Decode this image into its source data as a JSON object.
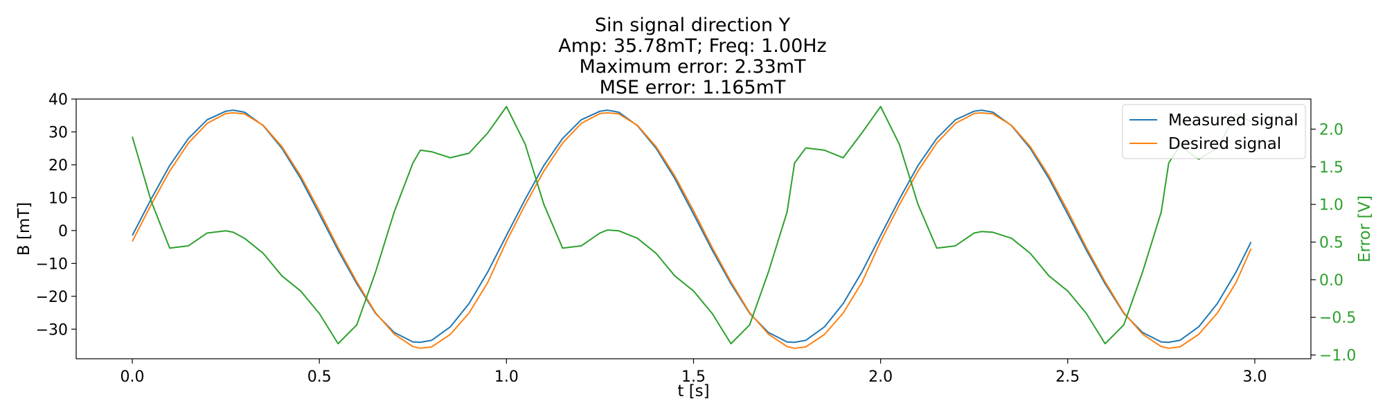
{
  "chart_data": {
    "type": "line",
    "title_lines": [
      "Sin signal direction Y",
      "Amp: 35.78mT; Freq: 1.00Hz",
      "Maximum error: 2.33mT",
      "MSE error: 1.165mT"
    ],
    "xlabel": "t [s]",
    "ylabel": "B [mT]",
    "y2label": "Error [V]",
    "xlim": [
      -0.15,
      3.15
    ],
    "ylim": [
      -39,
      40
    ],
    "y2lim": [
      -1.05,
      2.4
    ],
    "xticks": [
      0.0,
      0.5,
      1.0,
      1.5,
      2.0,
      2.5,
      3.0
    ],
    "xtick_labels": [
      "0.0",
      "0.5",
      "1.0",
      "1.5",
      "2.0",
      "2.5",
      "3.0"
    ],
    "yticks": [
      40,
      30,
      20,
      10,
      0,
      -10,
      -20,
      -30
    ],
    "ytick_labels": [
      "40",
      "30",
      "20",
      "10",
      "0",
      "−10",
      "−20",
      "−30"
    ],
    "y2ticks": [
      2.0,
      1.5,
      1.0,
      0.5,
      0.0,
      -0.5,
      -1.0
    ],
    "y2tick_labels": [
      "2.0",
      "1.5",
      "1.0",
      "0.5",
      "0.0",
      "−0.5",
      "−1.0"
    ],
    "grid": false,
    "legend_position": "upper-right",
    "x": [
      0.0,
      0.05,
      0.1,
      0.15,
      0.2,
      0.25,
      0.27,
      0.3,
      0.35,
      0.4,
      0.45,
      0.5,
      0.55,
      0.6,
      0.65,
      0.7,
      0.75,
      0.77,
      0.8,
      0.85,
      0.9,
      0.95,
      1.0,
      1.05,
      1.1,
      1.15,
      1.2,
      1.25,
      1.27,
      1.3,
      1.35,
      1.4,
      1.45,
      1.5,
      1.55,
      1.6,
      1.65,
      1.7,
      1.75,
      1.77,
      1.8,
      1.85,
      1.9,
      1.95,
      2.0,
      2.05,
      2.1,
      2.15,
      2.2,
      2.25,
      2.27,
      2.3,
      2.35,
      2.4,
      2.45,
      2.5,
      2.55,
      2.6,
      2.65,
      2.7,
      2.75,
      2.77,
      2.8,
      2.85,
      2.9,
      2.95,
      2.99
    ],
    "series": [
      {
        "name": "Measured signal",
        "axis": "left",
        "color": "#1f77b4",
        "values": [
          -1.5,
          9.5,
          19.8,
          28.0,
          33.7,
          36.3,
          36.6,
          36.0,
          31.9,
          25.0,
          15.8,
          5.0,
          -6.0,
          -16.2,
          -25.2,
          -31.0,
          -33.9,
          -34.0,
          -33.4,
          -29.3,
          -22.2,
          -12.6,
          -1.5,
          9.5,
          19.8,
          28.0,
          33.7,
          36.3,
          36.6,
          36.0,
          31.9,
          25.0,
          15.8,
          5.0,
          -6.0,
          -16.2,
          -25.2,
          -31.0,
          -33.9,
          -34.0,
          -33.4,
          -29.3,
          -22.2,
          -12.6,
          -1.5,
          9.5,
          19.8,
          28.0,
          33.7,
          36.3,
          36.6,
          36.0,
          31.9,
          25.0,
          15.8,
          5.0,
          -6.0,
          -16.2,
          -25.2,
          -31.0,
          -33.9,
          -34.0,
          -33.4,
          -29.3,
          -22.2,
          -12.6,
          -3.5
        ]
      },
      {
        "name": "Desired signal",
        "axis": "left",
        "color": "#ff7f0e",
        "values": [
          -3.3,
          7.8,
          18.1,
          26.6,
          32.6,
          35.6,
          35.8,
          35.5,
          32.0,
          25.5,
          16.6,
          6.0,
          -5.2,
          -15.6,
          -25.0,
          -31.5,
          -35.3,
          -35.8,
          -35.4,
          -31.6,
          -25.1,
          -15.8,
          -3.3,
          7.8,
          18.1,
          26.6,
          32.6,
          35.6,
          35.8,
          35.5,
          32.0,
          25.5,
          16.6,
          6.0,
          -5.2,
          -15.6,
          -25.0,
          -31.5,
          -35.3,
          -35.8,
          -35.4,
          -31.6,
          -25.1,
          -15.8,
          -3.3,
          7.8,
          18.1,
          26.6,
          32.6,
          35.6,
          35.8,
          35.5,
          32.0,
          25.5,
          16.6,
          6.0,
          -5.2,
          -15.6,
          -25.0,
          -31.5,
          -35.3,
          -35.8,
          -35.4,
          -31.6,
          -25.1,
          -15.8,
          -5.5
        ]
      },
      {
        "axis": "right",
        "color": "#2ca02c",
        "values": [
          1.9,
          1.05,
          0.42,
          0.45,
          0.62,
          0.65,
          0.63,
          0.55,
          0.35,
          0.05,
          -0.15,
          -0.45,
          -0.85,
          -0.6,
          0.1,
          0.9,
          1.55,
          1.72,
          1.7,
          1.62,
          1.68,
          1.95,
          2.3,
          1.8,
          1.0,
          0.42,
          0.45,
          0.62,
          0.66,
          0.65,
          0.55,
          0.35,
          0.05,
          -0.15,
          -0.45,
          -0.85,
          -0.6,
          0.1,
          0.9,
          1.55,
          1.75,
          1.72,
          1.62,
          1.95,
          2.3,
          1.8,
          1.0,
          0.42,
          0.45,
          0.62,
          0.64,
          0.63,
          0.55,
          0.35,
          0.05,
          -0.15,
          -0.45,
          -0.85,
          -0.6,
          0.1,
          0.9,
          1.55,
          1.78,
          1.6,
          1.75,
          2.2,
          2.1
        ]
      }
    ]
  }
}
